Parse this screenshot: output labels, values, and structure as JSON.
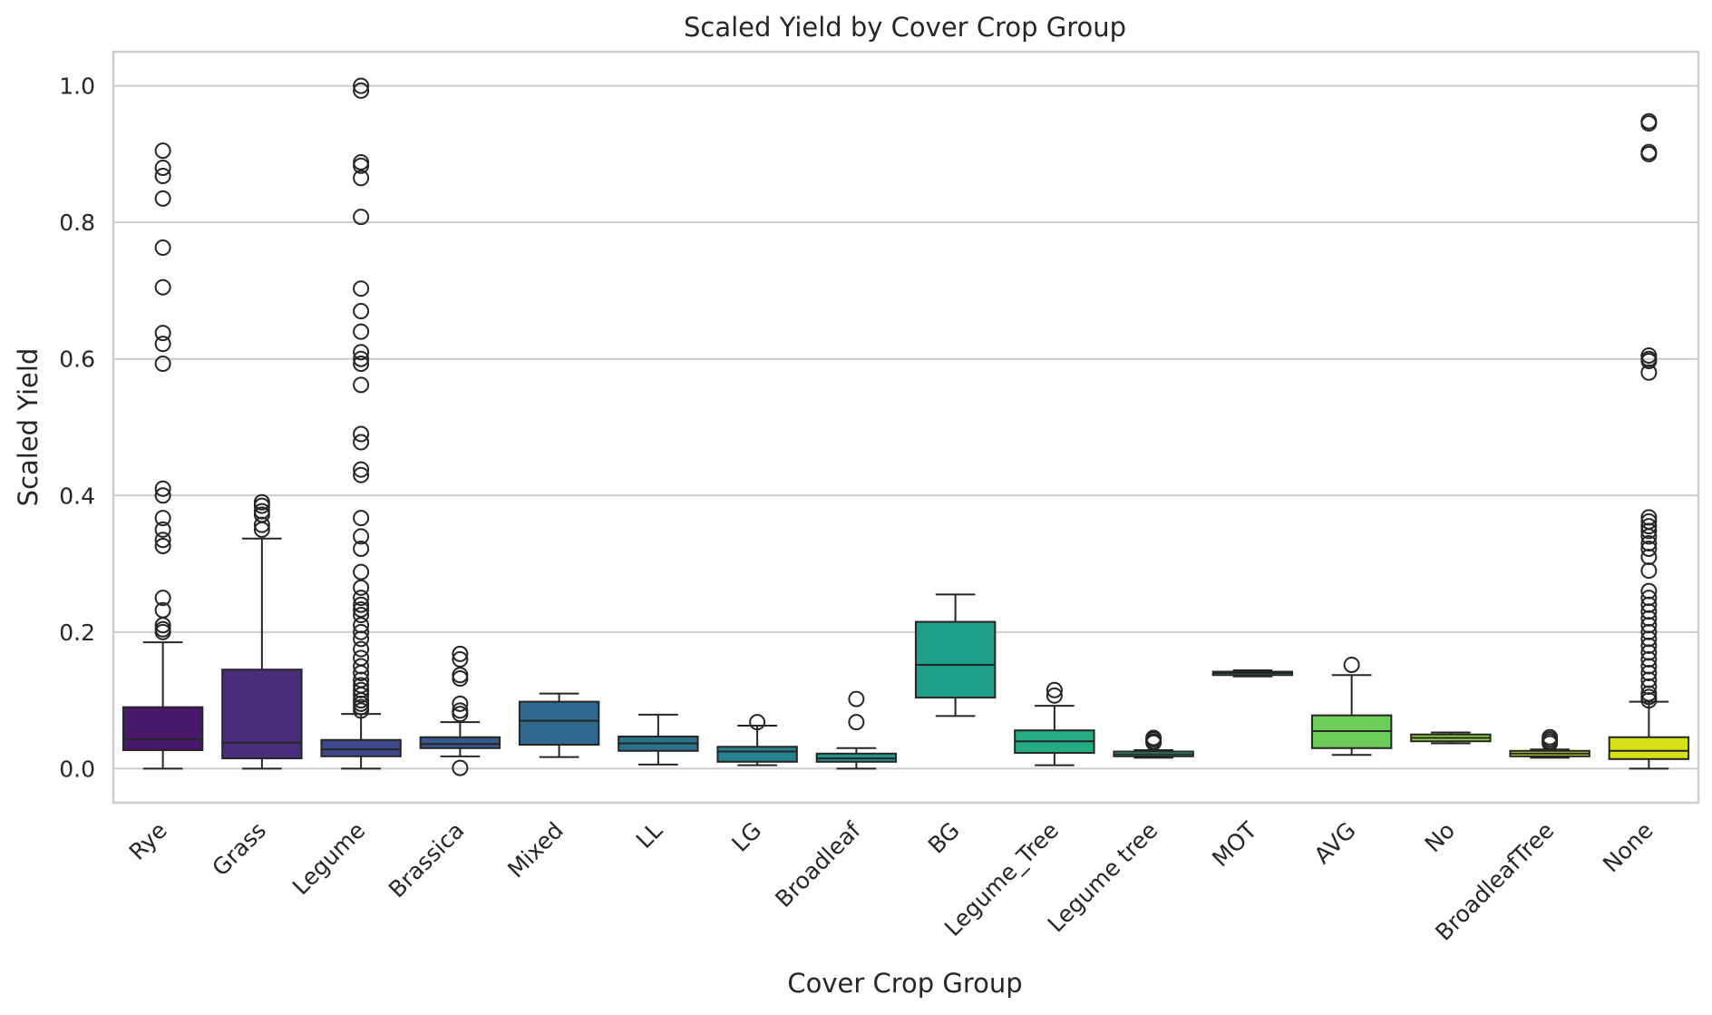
{
  "chart_data": {
    "type": "box",
    "title": "Scaled Yield by Cover Crop Group",
    "xlabel": "Cover Crop Group",
    "ylabel": "Scaled Yield",
    "ylim": [
      -0.05,
      1.05
    ],
    "yticks": [
      0.0,
      0.2,
      0.4,
      0.6,
      0.8,
      1.0
    ],
    "ytick_labels": [
      "0.0",
      "0.2",
      "0.4",
      "0.6",
      "0.8",
      "1.0"
    ],
    "grid": true,
    "palette": "viridis",
    "categories": [
      "Rye",
      "Grass",
      "Legume",
      "Brassica",
      "Mixed",
      "LL",
      "LG",
      "Broadleaf",
      "BG",
      "Legume_Tree",
      "Legume tree",
      "MOT",
      "AVG",
      "No",
      "BroadleafTree",
      "None"
    ],
    "boxes": [
      {
        "name": "Rye",
        "color": "#48186a",
        "whislo": 0.0,
        "q1": 0.027,
        "med": 0.043,
        "q3": 0.09,
        "whishi": 0.185,
        "fliers": [
          0.905,
          0.88,
          0.868,
          0.835,
          0.763,
          0.705,
          0.638,
          0.622,
          0.593,
          0.41,
          0.4,
          0.367,
          0.35,
          0.335,
          0.326,
          0.25,
          0.232,
          0.21,
          0.204,
          0.2
        ]
      },
      {
        "name": "Grass",
        "color": "#472d7b",
        "whislo": 0.0,
        "q1": 0.015,
        "med": 0.038,
        "q3": 0.145,
        "whishi": 0.337,
        "fliers": [
          0.39,
          0.385,
          0.377,
          0.372,
          0.357,
          0.35
        ]
      },
      {
        "name": "Legume",
        "color": "#3e4989",
        "whislo": 0.0,
        "q1": 0.018,
        "med": 0.028,
        "q3": 0.042,
        "whishi": 0.08,
        "fliers": [
          1.0,
          0.993,
          0.888,
          0.883,
          0.865,
          0.808,
          0.703,
          0.67,
          0.64,
          0.61,
          0.6,
          0.593,
          0.562,
          0.49,
          0.478,
          0.438,
          0.43,
          0.367,
          0.34,
          0.322,
          0.288,
          0.265,
          0.25,
          0.24,
          0.233,
          0.225,
          0.21,
          0.2,
          0.19,
          0.175,
          0.162,
          0.15,
          0.14,
          0.13,
          0.122,
          0.115,
          0.108,
          0.1,
          0.095,
          0.09,
          0.085
        ]
      },
      {
        "name": "Brassica",
        "color": "#38598c",
        "whislo": 0.018,
        "q1": 0.03,
        "med": 0.036,
        "q3": 0.046,
        "whishi": 0.068,
        "fliers": [
          0.168,
          0.16,
          0.137,
          0.132,
          0.095,
          0.085,
          0.08,
          0.001
        ]
      },
      {
        "name": "Mixed",
        "color": "#31688e",
        "whislo": 0.017,
        "q1": 0.035,
        "med": 0.07,
        "q3": 0.098,
        "whishi": 0.11,
        "fliers": []
      },
      {
        "name": "LL",
        "color": "#2c728e",
        "whislo": 0.006,
        "q1": 0.026,
        "med": 0.037,
        "q3": 0.047,
        "whishi": 0.079,
        "fliers": []
      },
      {
        "name": "LG",
        "color": "#26828e",
        "whislo": 0.005,
        "q1": 0.01,
        "med": 0.025,
        "q3": 0.032,
        "whishi": 0.063,
        "fliers": [
          0.068
        ]
      },
      {
        "name": "Broadleaf",
        "color": "#21918c",
        "whislo": 0.0,
        "q1": 0.01,
        "med": 0.015,
        "q3": 0.022,
        "whishi": 0.03,
        "fliers": [
          0.102,
          0.068
        ]
      },
      {
        "name": "BG",
        "color": "#1f9e89",
        "whislo": 0.077,
        "q1": 0.104,
        "med": 0.152,
        "q3": 0.215,
        "whishi": 0.255,
        "fliers": []
      },
      {
        "name": "Legume_Tree",
        "color": "#25ac82",
        "whislo": 0.005,
        "q1": 0.023,
        "med": 0.04,
        "q3": 0.056,
        "whishi": 0.092,
        "fliers": [
          0.115,
          0.107
        ]
      },
      {
        "name": "Legume tree",
        "color": "#35b779",
        "whislo": 0.016,
        "q1": 0.018,
        "med": 0.021,
        "q3": 0.025,
        "whishi": 0.027,
        "fliers": [
          0.045,
          0.043,
          0.04,
          0.038
        ]
      },
      {
        "name": "MOT",
        "color": "#4ec36b",
        "whislo": 0.135,
        "q1": 0.137,
        "med": 0.14,
        "q3": 0.142,
        "whishi": 0.144,
        "fliers": []
      },
      {
        "name": "AVG",
        "color": "#6ccd5a",
        "whislo": 0.02,
        "q1": 0.03,
        "med": 0.055,
        "q3": 0.078,
        "whishi": 0.137,
        "fliers": [
          0.152
        ]
      },
      {
        "name": "No",
        "color": "#8fd744",
        "whislo": 0.037,
        "q1": 0.04,
        "med": 0.045,
        "q3": 0.05,
        "whishi": 0.053,
        "fliers": []
      },
      {
        "name": "BroadleafTree",
        "color": "#b4de2c",
        "whislo": 0.016,
        "q1": 0.018,
        "med": 0.022,
        "q3": 0.026,
        "whishi": 0.028,
        "fliers": [
          0.046,
          0.043,
          0.04,
          0.037
        ]
      },
      {
        "name": "None",
        "color": "#d5e21a",
        "whislo": 0.0,
        "q1": 0.014,
        "med": 0.026,
        "q3": 0.046,
        "whishi": 0.098,
        "fliers": [
          0.948,
          0.945,
          0.903,
          0.9,
          0.605,
          0.6,
          0.597,
          0.58,
          0.368,
          0.362,
          0.355,
          0.348,
          0.34,
          0.33,
          0.322,
          0.31,
          0.29,
          0.26,
          0.25,
          0.24,
          0.23,
          0.22,
          0.21,
          0.2,
          0.19,
          0.18,
          0.17,
          0.16,
          0.15,
          0.14,
          0.13,
          0.12,
          0.11,
          0.105,
          0.1
        ]
      }
    ]
  }
}
